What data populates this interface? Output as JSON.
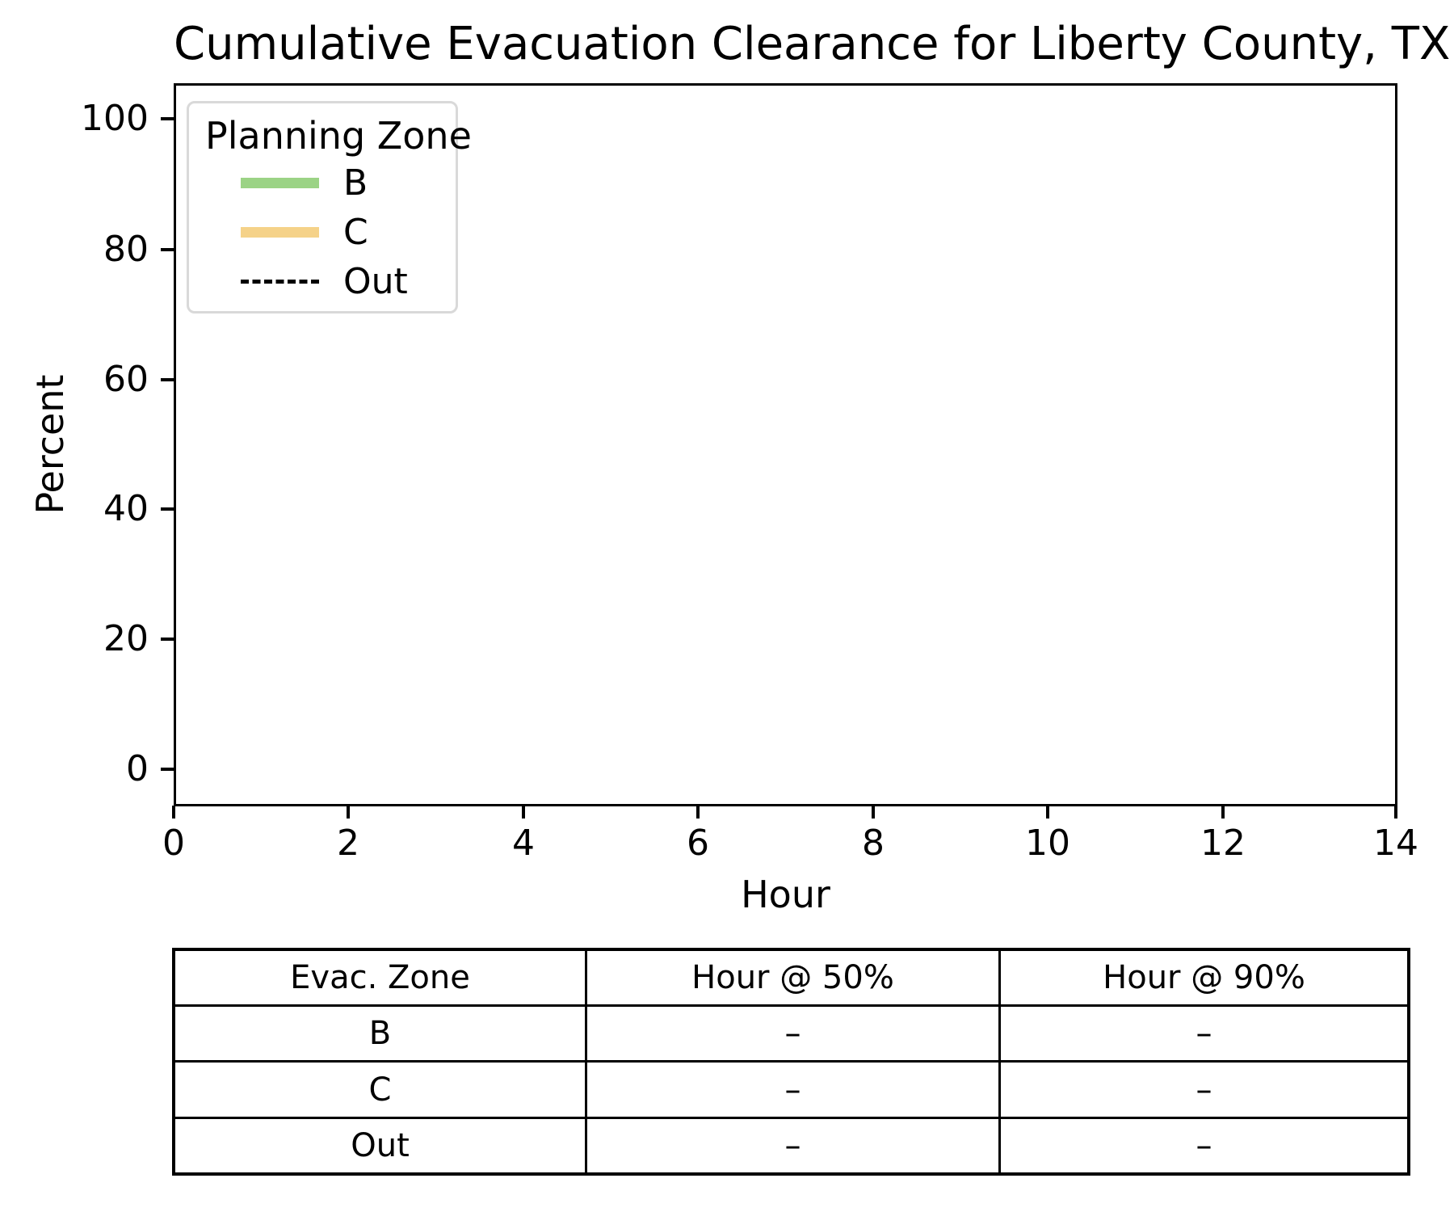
{
  "title": "Cumulative Evacuation Clearance for Liberty County, TX",
  "chart_data": {
    "type": "line",
    "title": "Cumulative Evacuation Clearance for Liberty County, TX",
    "xlabel": "Hour",
    "ylabel": "Percent",
    "xlim": [
      0,
      14
    ],
    "ylim": [
      0,
      100
    ],
    "xticks": [
      "0",
      "2",
      "4",
      "6",
      "8",
      "10",
      "12",
      "14"
    ],
    "yticks": [
      "100",
      "80",
      "60",
      "40",
      "20",
      "0"
    ],
    "grid": false,
    "legend": {
      "title": "Planning Zone",
      "position": "upper left",
      "entries": [
        {
          "label": "B",
          "color": "#9bd385",
          "style": "solid"
        },
        {
          "label": "C",
          "color": "#f5d289",
          "style": "solid"
        },
        {
          "label": "Out",
          "color": "#000000",
          "style": "dashed"
        }
      ]
    },
    "series": [
      {
        "name": "B",
        "x": [],
        "y": []
      },
      {
        "name": "C",
        "x": [],
        "y": []
      },
      {
        "name": "Out",
        "x": [],
        "y": []
      }
    ],
    "note": "plot area is empty; no data lines are drawn"
  },
  "table": {
    "headers": [
      "Evac. Zone",
      "Hour @ 50%",
      "Hour @ 90%"
    ],
    "rows": [
      [
        "B",
        "–",
        "–"
      ],
      [
        "C",
        "–",
        "–"
      ],
      [
        "Out",
        "–",
        "–"
      ]
    ]
  },
  "colors": {
    "zone_b": "#9bd385",
    "zone_c": "#f5d289",
    "out_line": "#000000",
    "legend_border": "#d9d9d9",
    "axes": "#000000",
    "background": "#ffffff"
  }
}
